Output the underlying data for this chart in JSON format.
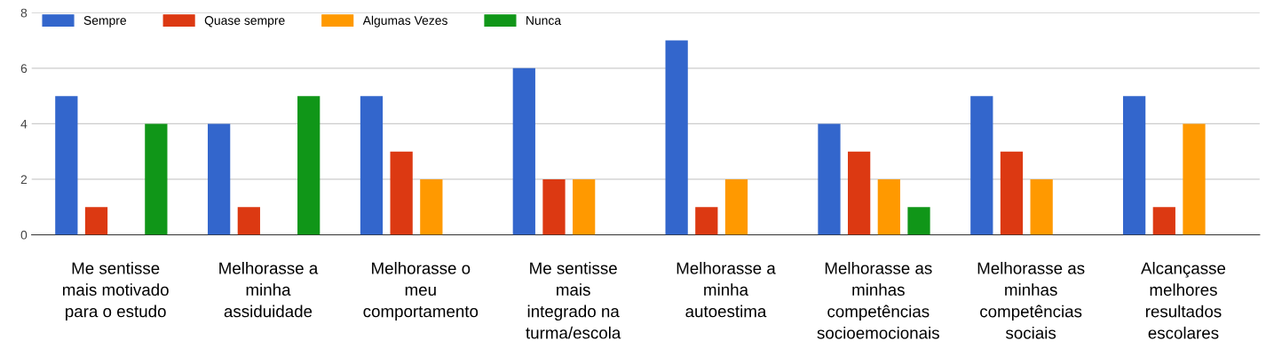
{
  "chart_data": {
    "type": "bar",
    "categories": [
      "Me sentisse\nmais motivado\npara o estudo",
      "Melhorasse a\nminha\nassiduidade",
      "Melhorasse o\nmeu\ncomportamento",
      "Me sentisse\nmais\nintegrado na\nturma/escola",
      "Melhorasse a\nminha\nautoestima",
      "Melhorasse as\nminhas\ncompetências\nsocioemocionais",
      "Melhorasse as\nminhas\ncompetências\nsociais",
      "Alcançasse\nmelhores\nresultados\nescolares"
    ],
    "series": [
      {
        "name": "Sempre",
        "color": "#3366cc",
        "values": [
          5,
          4,
          5,
          6,
          7,
          4,
          5,
          5
        ]
      },
      {
        "name": "Quase sempre",
        "color": "#dc3912",
        "values": [
          1,
          1,
          3,
          2,
          1,
          3,
          3,
          1
        ]
      },
      {
        "name": "Algumas Vezes",
        "color": "#ff9900",
        "values": [
          0,
          0,
          2,
          2,
          2,
          2,
          2,
          4
        ]
      },
      {
        "name": "Nunca",
        "color": "#109618",
        "values": [
          4,
          5,
          0,
          0,
          0,
          1,
          0,
          0
        ]
      }
    ],
    "ylim": [
      0,
      8
    ],
    "yticks": [
      0,
      2,
      4,
      6,
      8
    ],
    "grid": "y",
    "legend": "top left"
  }
}
